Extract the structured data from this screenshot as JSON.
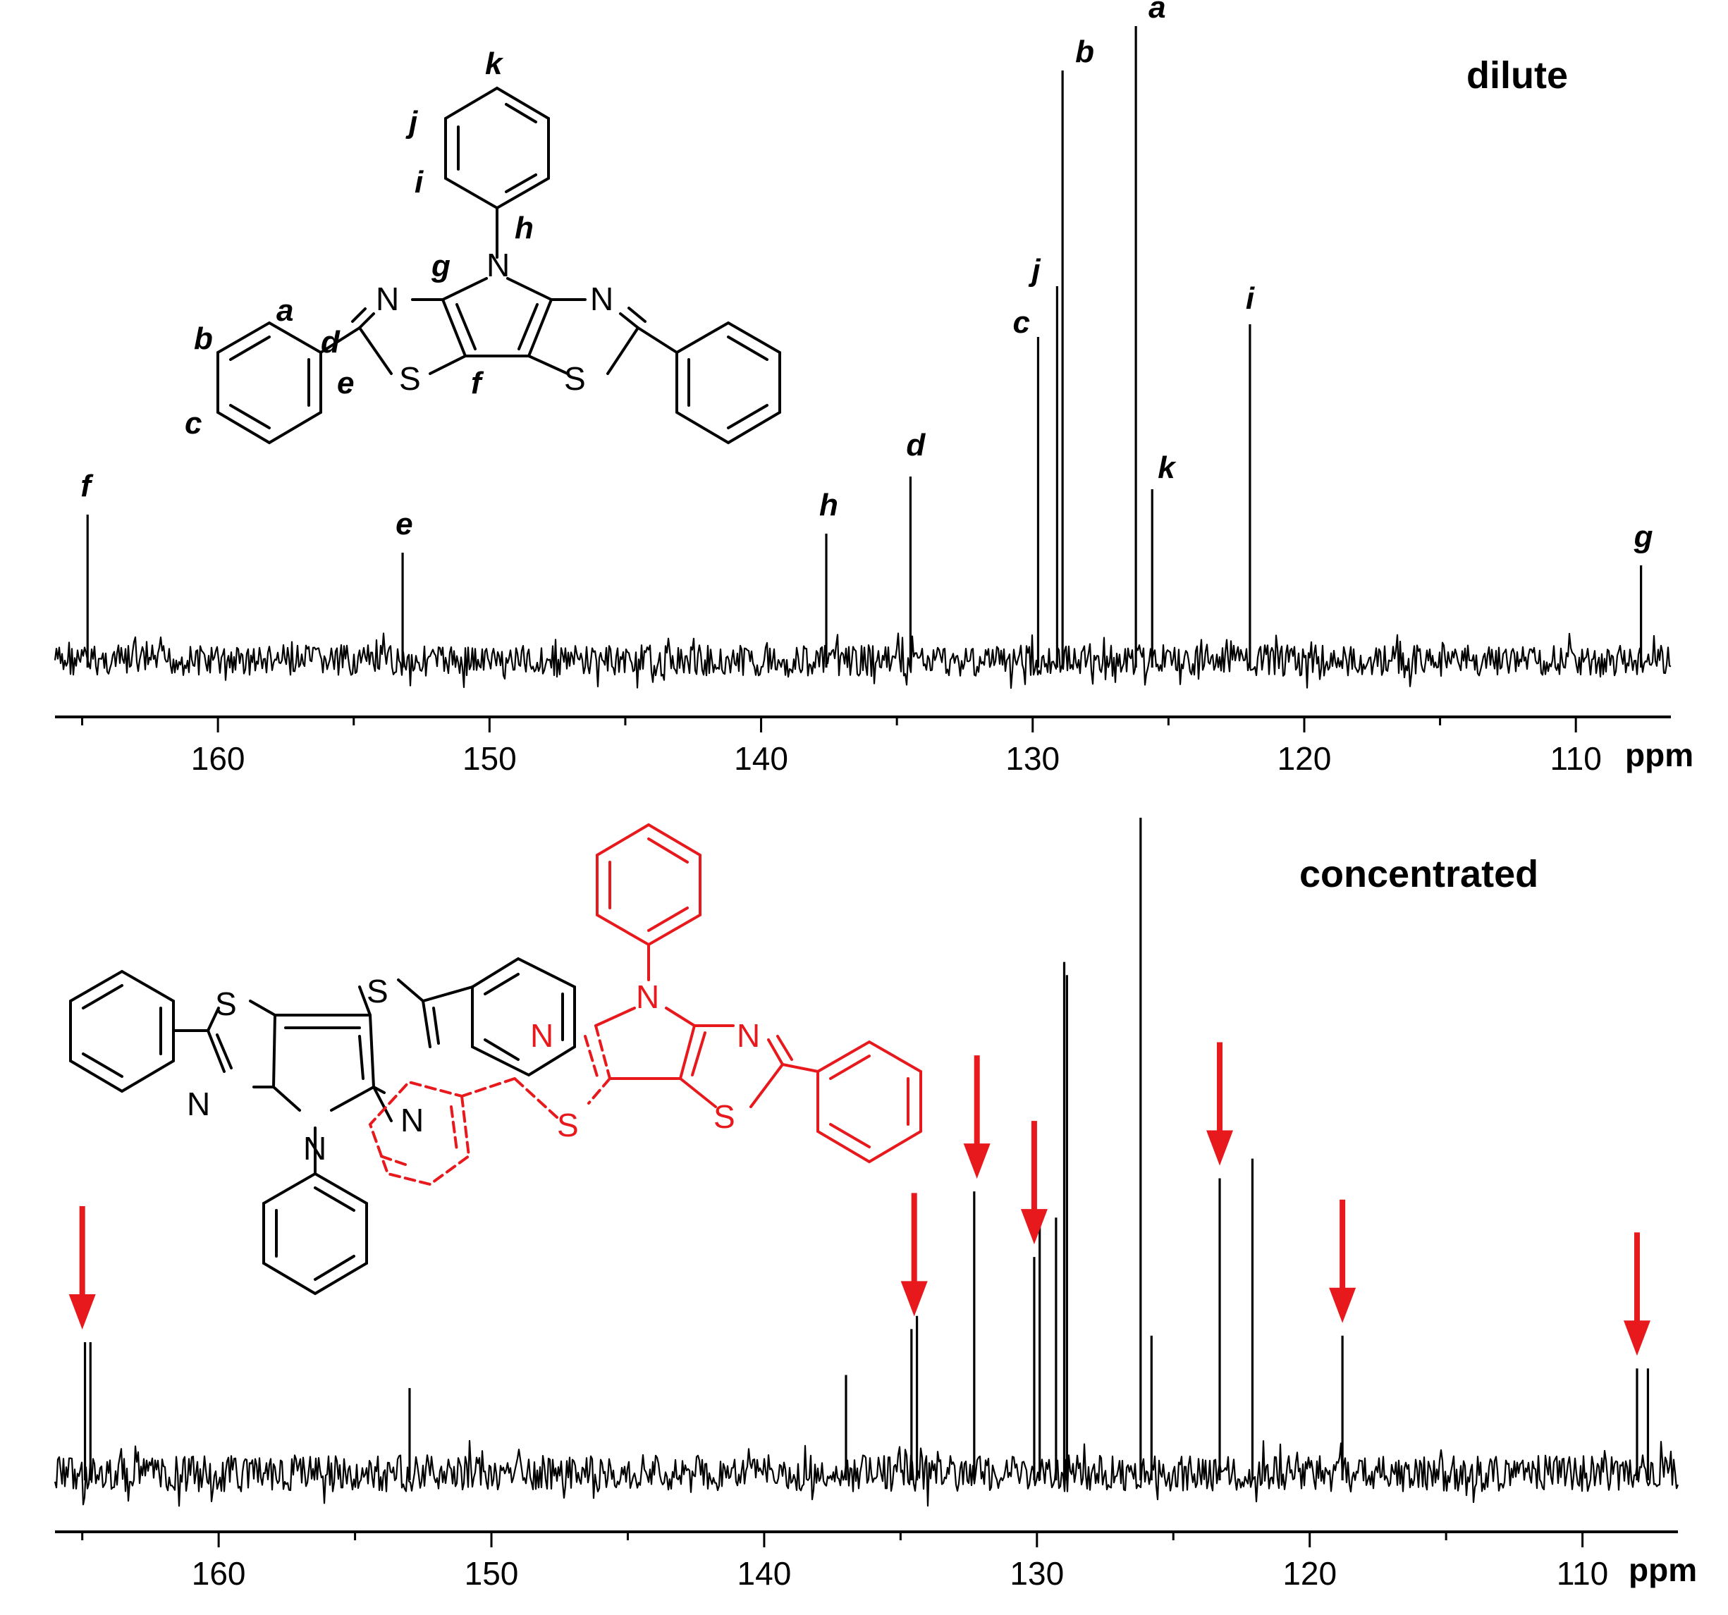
{
  "chart_data": [
    {
      "type": "line",
      "label": "dilute",
      "xlabel": "ppm",
      "xlim": [
        166,
        106.5
      ],
      "x_reversed": true,
      "xticks": [
        160,
        150,
        140,
        130,
        120,
        110
      ],
      "peaks": [
        {
          "label": "f",
          "ppm": 164.8,
          "height": 0.23
        },
        {
          "label": "e",
          "ppm": 153.2,
          "height": 0.17
        },
        {
          "label": "h",
          "ppm": 137.6,
          "height": 0.2
        },
        {
          "label": "d",
          "ppm": 134.5,
          "height": 0.29
        },
        {
          "label": "c",
          "ppm": 129.8,
          "height": 0.51
        },
        {
          "label": "j",
          "ppm": 129.1,
          "height": 0.59
        },
        {
          "label": "b",
          "ppm": 128.9,
          "height": 0.93
        },
        {
          "label": "a",
          "ppm": 126.2,
          "height": 1.0
        },
        {
          "label": "k",
          "ppm": 125.6,
          "height": 0.27
        },
        {
          "label": "i",
          "ppm": 122.0,
          "height": 0.53
        },
        {
          "label": "g",
          "ppm": 107.6,
          "height": 0.15
        }
      ]
    },
    {
      "type": "line",
      "label": "concentrated",
      "xlabel": "ppm",
      "xlim": [
        166,
        106.5
      ],
      "x_reversed": true,
      "xticks": [
        160,
        150,
        140,
        130,
        120,
        110
      ],
      "peaks": [
        {
          "ppm": 164.9,
          "height": 0.2
        },
        {
          "ppm": 164.7,
          "height": 0.2
        },
        {
          "ppm": 153.0,
          "height": 0.13
        },
        {
          "ppm": 137.0,
          "height": 0.15
        },
        {
          "ppm": 134.6,
          "height": 0.22
        },
        {
          "ppm": 134.4,
          "height": 0.24
        },
        {
          "ppm": 132.3,
          "height": 0.43
        },
        {
          "ppm": 130.1,
          "height": 0.33
        },
        {
          "ppm": 129.9,
          "height": 0.38
        },
        {
          "ppm": 129.3,
          "height": 0.39
        },
        {
          "ppm": 129.0,
          "height": 0.78
        },
        {
          "ppm": 128.9,
          "height": 0.76
        },
        {
          "ppm": 126.2,
          "height": 1.0
        },
        {
          "ppm": 125.8,
          "height": 0.21
        },
        {
          "ppm": 123.3,
          "height": 0.45
        },
        {
          "ppm": 122.1,
          "height": 0.48
        },
        {
          "ppm": 118.8,
          "height": 0.21
        },
        {
          "ppm": 108.0,
          "height": 0.16
        },
        {
          "ppm": 107.6,
          "height": 0.16
        }
      ],
      "arrows_ppm": [
        165.0,
        134.5,
        132.2,
        130.1,
        123.3,
        118.8,
        108.0
      ]
    }
  ],
  "colors": {
    "spectrum": "#000000",
    "accent": "#e8191c"
  },
  "structure_top": {
    "atom_labels": {
      "N": "N",
      "S": "S"
    },
    "position_labels": [
      "a",
      "b",
      "c",
      "d",
      "e",
      "f",
      "g",
      "h",
      "i",
      "j",
      "k"
    ]
  }
}
